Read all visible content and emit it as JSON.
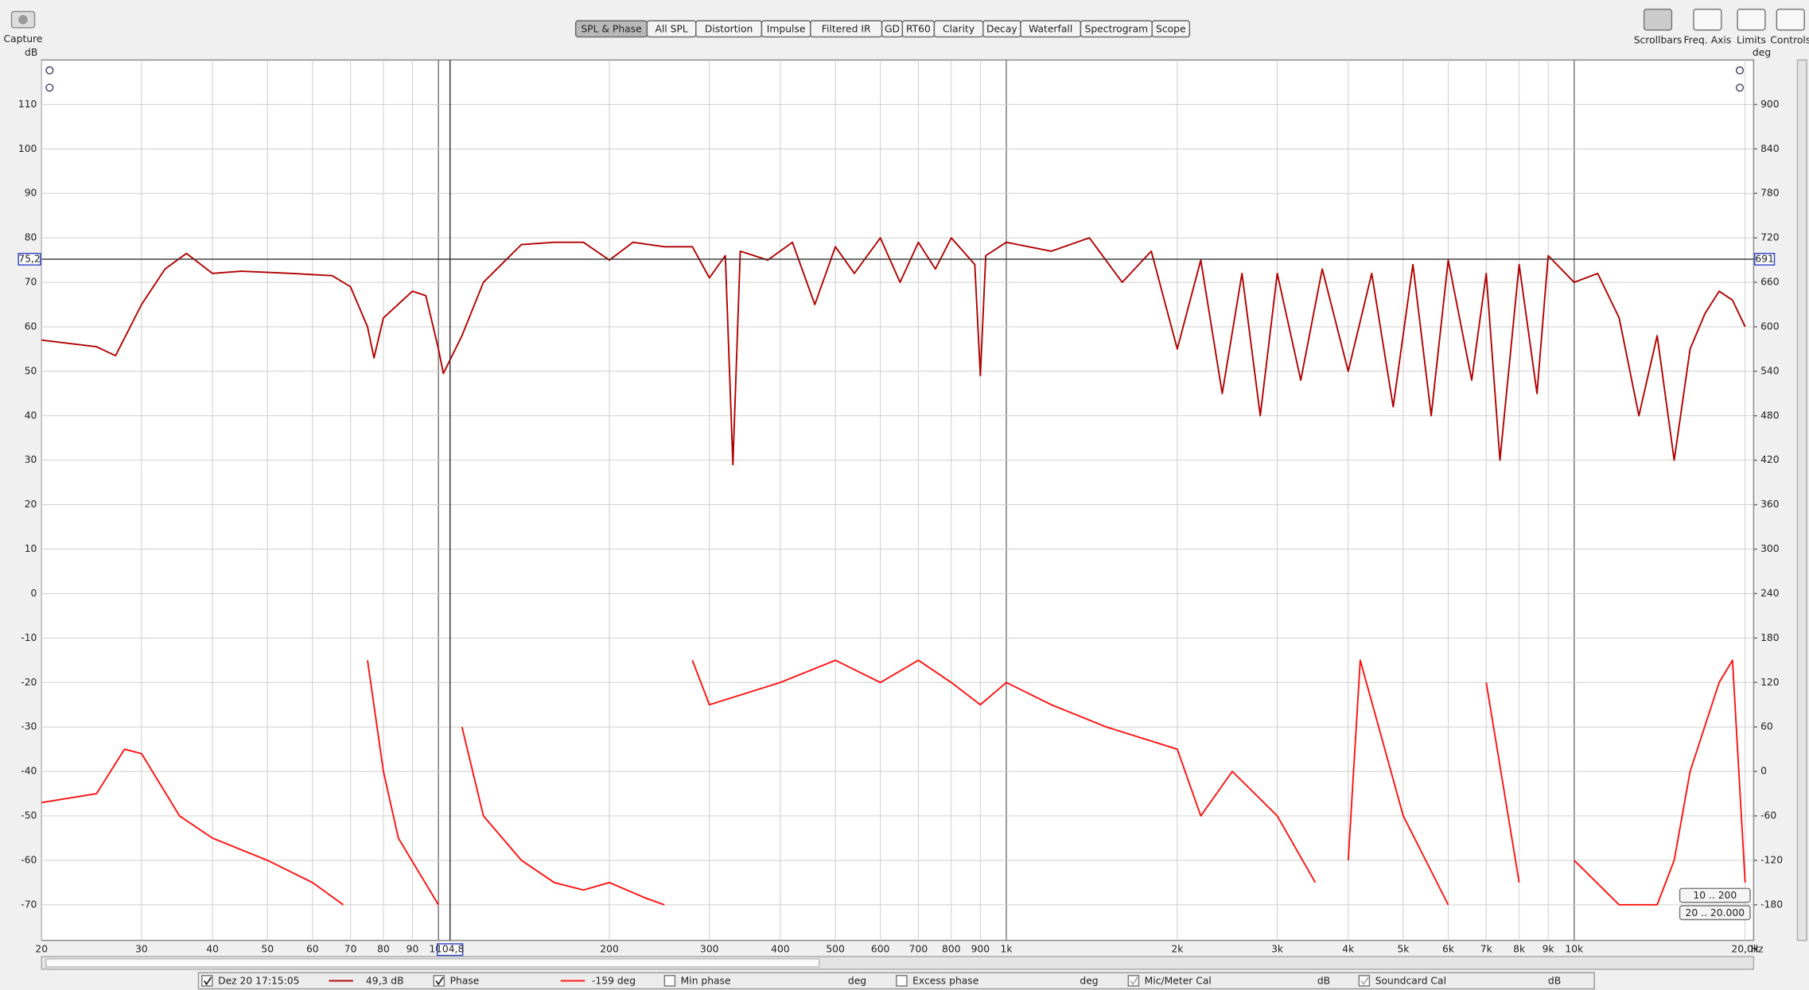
{
  "toolbar": {
    "capture": "Capture",
    "tabs": [
      "SPL & Phase",
      "All SPL",
      "Distortion",
      "Impulse",
      "Filtered IR",
      "GD",
      "RT60",
      "Clarity",
      "Decay",
      "Waterfall",
      "Spectrogram",
      "Scope"
    ],
    "right_buttons": [
      "Scrollbars",
      "Freq. Axis",
      "Limits",
      "Controls"
    ]
  },
  "chart_data": {
    "type": "line",
    "y_label": "dB",
    "y2_label": "deg",
    "x_unit": "Hz",
    "log_x": true,
    "grid": true,
    "xlim": [
      20,
      20700
    ],
    "ylim": [
      -78,
      120
    ],
    "y2lim": [
      -228,
      960
    ],
    "xticks": [
      20,
      30,
      40,
      50,
      60,
      70,
      80,
      90,
      100,
      200,
      300,
      400,
      500,
      600,
      700,
      800,
      900,
      {
        "value": 1000,
        "label": "1k"
      },
      {
        "value": 2000,
        "label": "2k"
      },
      {
        "value": 3000,
        "label": "3k"
      },
      {
        "value": 4000,
        "label": "4k"
      },
      {
        "value": 5000,
        "label": "5k"
      },
      {
        "value": 6000,
        "label": "6k"
      },
      {
        "value": 7000,
        "label": "7k"
      },
      {
        "value": 8000,
        "label": "8k"
      },
      {
        "value": 9000,
        "label": "9k"
      },
      {
        "value": 10000,
        "label": "10k"
      },
      {
        "value": 20000,
        "label": "20,0k"
      }
    ],
    "yticks": [
      -70,
      -60,
      -50,
      -40,
      -30,
      -20,
      -10,
      0,
      10,
      20,
      30,
      40,
      50,
      60,
      70,
      80,
      90,
      100,
      110
    ],
    "y2ticks": [
      -180,
      -120,
      -60,
      0,
      60,
      120,
      180,
      240,
      300,
      360,
      420,
      480,
      540,
      600,
      660,
      720,
      780,
      840,
      900
    ],
    "series": [
      {
        "name": "Dez 20 17:15:05",
        "color": "#b00000",
        "axis": "y",
        "x": [
          20,
          25,
          27,
          30,
          33,
          36,
          40,
          45,
          55,
          65,
          70,
          75,
          77,
          80,
          90,
          95,
          100,
          102,
          110,
          120,
          140,
          160,
          180,
          200,
          220,
          250,
          280,
          300,
          320,
          330,
          340,
          380,
          420,
          460,
          500,
          540,
          600,
          650,
          700,
          750,
          800,
          880,
          900,
          920,
          1000,
          1200,
          1400,
          1600,
          1800,
          2000,
          2200,
          2400,
          2600,
          2800,
          3000,
          3300,
          3600,
          4000,
          4400,
          4800,
          5200,
          5600,
          6000,
          6600,
          7000,
          7400,
          8000,
          8600,
          9000,
          10000,
          11000,
          12000,
          13000,
          14000,
          15000,
          16000,
          17000,
          18000,
          19000,
          20000
        ],
        "values": [
          57,
          55.5,
          53.5,
          65,
          73,
          76.5,
          72,
          72.5,
          72,
          71.5,
          69,
          60,
          53,
          62,
          68,
          67,
          55,
          49.5,
          58,
          70,
          78.5,
          79,
          79,
          75,
          79,
          78,
          78,
          71,
          76,
          29,
          77,
          75,
          79,
          65,
          78,
          72,
          80,
          70,
          79,
          73,
          80,
          74,
          49,
          76,
          79,
          77,
          80,
          70,
          77,
          55,
          75,
          45,
          72,
          40,
          72,
          48,
          73,
          50,
          72,
          42,
          74,
          40,
          75,
          48,
          72,
          30,
          74,
          45,
          76,
          70,
          72,
          62,
          40,
          58,
          30,
          55,
          63,
          68,
          66,
          60
        ]
      },
      {
        "name": "Phase",
        "color": "#ff1010",
        "axis": "y2",
        "x": [
          20,
          25,
          28,
          30,
          35,
          40,
          50,
          60,
          68,
          68,
          75,
          80,
          85,
          100,
          105,
          110,
          120,
          140,
          160,
          180,
          200,
          230,
          250,
          260,
          280,
          300,
          400,
          500,
          600,
          700,
          800,
          900,
          1000,
          1200,
          1500,
          2000,
          2200,
          2500,
          3000,
          3500,
          3600,
          4000,
          4200,
          5000,
          6000,
          6000,
          7000,
          8000,
          8000,
          10000,
          12000,
          14000,
          15000,
          16000,
          18000,
          19000,
          20000
        ],
        "values": [
          -42,
          -30,
          30,
          24,
          -60,
          -90,
          -120,
          -150,
          -180,
          null,
          150,
          0,
          -90,
          -180,
          null,
          60,
          -60,
          -120,
          -150,
          -160,
          -150,
          -170,
          -180,
          null,
          150,
          90,
          120,
          150,
          120,
          150,
          120,
          90,
          120,
          90,
          60,
          30,
          -60,
          0,
          -60,
          -150,
          null,
          -120,
          150,
          -60,
          -180,
          null,
          120,
          -150,
          null,
          -120,
          -180,
          -180,
          -120,
          0,
          120,
          150,
          -150
        ]
      }
    ],
    "cursor": {
      "x": {
        "value": 104.8,
        "label": "104,8"
      },
      "y": {
        "value": 75.2,
        "label": "75,2"
      },
      "y2": 691
    },
    "range_buttons": [
      "10 .. 200",
      "20 .. 20.000"
    ]
  },
  "legend_bar": {
    "items": [
      {
        "label": "Dez 20 17:15:05",
        "readout": "49,3 dB",
        "checked": true
      },
      {
        "label": "Phase",
        "readout": "-159 deg",
        "checked": true
      },
      {
        "label": "Min phase",
        "readout": "deg",
        "checked": false
      },
      {
        "label": "Excess phase",
        "readout": "deg",
        "checked": false
      },
      {
        "label": "Mic/Meter Cal",
        "readout": "dB",
        "checked": true
      },
      {
        "label": "Soundcard Cal",
        "readout": "dB",
        "checked": true
      }
    ]
  }
}
